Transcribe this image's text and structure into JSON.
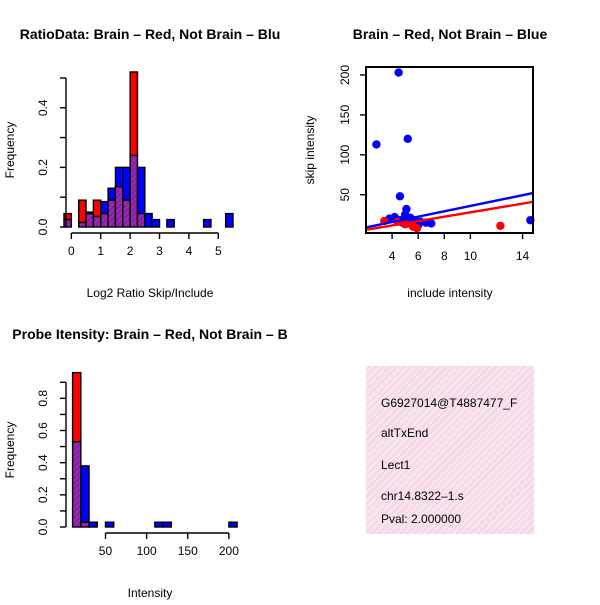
{
  "colors": {
    "red": "#ff0000",
    "blue": "#0000ff",
    "overlap": "#8b1fa8",
    "info_bg": "#f6dcec",
    "pval": "#cc0000"
  },
  "chart_data": [
    {
      "type": "bar",
      "title": "RatioData: Brain – Red, Not Brain – Blu",
      "xlabel": "Log2 Ratio Skip/Include",
      "ylabel": "Frequency",
      "bin_width": 0.25,
      "xlim": [
        -0.25,
        5.5
      ],
      "ylim": [
        0,
        0.52
      ],
      "xticks": [
        0,
        1,
        2,
        3,
        4,
        5
      ],
      "yticks": [
        0.0,
        0.2,
        0.4
      ],
      "series": [
        {
          "name": "Brain",
          "color": "red",
          "bins": [
            [
              -0.25,
              0.045
            ],
            [
              0.25,
              0.09
            ],
            [
              0.5,
              0.045
            ],
            [
              0.75,
              0.09
            ],
            [
              1.0,
              0.045
            ],
            [
              1.25,
              0.09
            ],
            [
              1.5,
              0.135
            ],
            [
              1.75,
              0.09
            ],
            [
              2.0,
              0.52
            ],
            [
              2.25,
              0.045
            ]
          ]
        },
        {
          "name": "Not Brain",
          "color": "blue",
          "bins": [
            [
              -0.25,
              0.025
            ],
            [
              0.25,
              0.015
            ],
            [
              0.5,
              0.05
            ],
            [
              0.75,
              0.035
            ],
            [
              1.0,
              0.085
            ],
            [
              1.25,
              0.13
            ],
            [
              1.5,
              0.2
            ],
            [
              1.75,
              0.2
            ],
            [
              2.0,
              0.24
            ],
            [
              2.25,
              0.2
            ],
            [
              2.5,
              0.045
            ],
            [
              2.75,
              0.025
            ],
            [
              3.25,
              0.025
            ],
            [
              4.5,
              0.025
            ],
            [
              5.25,
              0.045
            ]
          ]
        }
      ]
    },
    {
      "type": "scatter",
      "title": "Brain – Red, Not Brain – Blue",
      "xlabel": "include intensity",
      "ylabel": "skip intensity",
      "xlim": [
        2.0,
        14.8
      ],
      "ylim": [
        2,
        210
      ],
      "xticks": [
        4,
        6,
        8,
        10,
        14
      ],
      "yticks": [
        50,
        100,
        150,
        200
      ],
      "series": [
        {
          "name": "Not Brain",
          "color": "blue",
          "points": [
            [
              2.8,
              113
            ],
            [
              4.5,
              203
            ],
            [
              5.2,
              120
            ],
            [
              4.6,
              48
            ],
            [
              5.1,
              32
            ],
            [
              3.8,
              20
            ],
            [
              4.2,
              22
            ],
            [
              4.6,
              18
            ],
            [
              5.0,
              25
            ],
            [
              5.4,
              21
            ],
            [
              5.8,
              18
            ],
            [
              6.2,
              16
            ],
            [
              6.6,
              15
            ],
            [
              7.0,
              14
            ],
            [
              4.8,
              15
            ],
            [
              5.2,
              14
            ],
            [
              5.6,
              13
            ],
            [
              6.0,
              12
            ],
            [
              14.6,
              18
            ]
          ],
          "fit": [
            [
              2.0,
              9
            ],
            [
              14.8,
              52
            ]
          ]
        },
        {
          "name": "Brain",
          "color": "red",
          "points": [
            [
              3.4,
              17
            ],
            [
              4.4,
              16
            ],
            [
              5.0,
              13
            ],
            [
              5.6,
              10
            ],
            [
              5.9,
              8
            ],
            [
              12.3,
              11
            ]
          ],
          "fit": [
            [
              2.0,
              6
            ],
            [
              14.8,
              41
            ]
          ]
        }
      ]
    },
    {
      "type": "bar",
      "title": "Probe Itensity: Brain – Red, Not Brain – B",
      "xlabel": "Intensity",
      "ylabel": "Frequency",
      "bin_width": 10,
      "xlim": [
        2,
        205
      ],
      "ylim": [
        0,
        0.97
      ],
      "xticks": [
        50,
        100,
        150,
        200
      ],
      "yticks": [
        0.0,
        0.2,
        0.4,
        0.6,
        0.8
      ],
      "series": [
        {
          "name": "Brain",
          "color": "red",
          "bins": [
            [
              10,
              0.96
            ],
            [
              20,
              0.03
            ]
          ]
        },
        {
          "name": "Not Brain",
          "color": "blue",
          "bins": [
            [
              10,
              0.53
            ],
            [
              20,
              0.38
            ],
            [
              30,
              0.03
            ],
            [
              40,
              0.0
            ],
            [
              50,
              0.03
            ],
            [
              110,
              0.03
            ],
            [
              120,
              0.03
            ],
            [
              200,
              0.03
            ]
          ]
        }
      ]
    }
  ],
  "info": {
    "id": "G6927014@T4887477_F",
    "event_type": "altTxEnd",
    "gene": "Lect1",
    "location": "chr14.8322–1.s",
    "pval": "Pval: 2.000000"
  }
}
